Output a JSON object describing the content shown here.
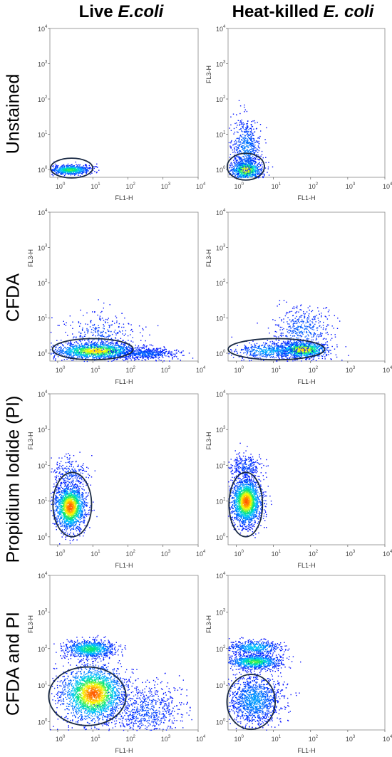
{
  "columns": [
    {
      "plain": "Live ",
      "italic": "E.coli"
    },
    {
      "plain": "Heat-killed ",
      "italic": "E. coli"
    }
  ],
  "rows": [
    "Unstained",
    "CFDA",
    "Propidium Iodide (PI)",
    "CFDA and PI"
  ],
  "colors": {
    "low": "#0000ff",
    "mid": "#00c8ff",
    "high": "#ffff00",
    "peak": "#ff5000",
    "gate": "#1a2a44"
  },
  "chart_data": [
    {
      "type": "scatter",
      "panel": "live-unstained",
      "xlabel": "FL1-H",
      "ylabel": "",
      "xscale": "log",
      "yscale": "log",
      "xlim": [
        0.6,
        10000
      ],
      "ylim": [
        0.6,
        10000
      ],
      "x_ticks": [
        "10^0",
        "10^1",
        "10^2",
        "10^3",
        "10^4"
      ],
      "y_ticks": [
        "10^0",
        "10^1",
        "10^2",
        "10^3",
        "10^4"
      ],
      "clusters": [
        {
          "x": 2.2,
          "y": 1.0,
          "spread_x": 0.28,
          "spread_y": 0.07,
          "n": 700,
          "intensity": 0.6
        }
      ],
      "gate": {
        "cx": 2.5,
        "cy": 1.1,
        "rx_dec": 0.6,
        "ry_dec": 0.28
      }
    },
    {
      "type": "scatter",
      "panel": "heat-unstained",
      "xlabel": "FL1-H",
      "ylabel": "FL3-H",
      "xscale": "log",
      "yscale": "log",
      "xlim": [
        0.6,
        10000
      ],
      "ylim": [
        0.6,
        10000
      ],
      "x_ticks": [
        "10^0",
        "10^1",
        "10^2",
        "10^3",
        "10^4"
      ],
      "y_ticks": [
        "10^0",
        "10^1",
        "10^2",
        "10^3",
        "10^4"
      ],
      "clusters": [
        {
          "x": 1.8,
          "y": 1.0,
          "spread_x": 0.22,
          "spread_y": 0.15,
          "n": 800,
          "intensity": 0.75
        },
        {
          "x": 1.8,
          "y": 4.0,
          "spread_x": 0.2,
          "spread_y": 0.45,
          "n": 600,
          "intensity": 0.2
        }
      ],
      "gate": {
        "cx": 1.8,
        "cy": 1.2,
        "rx_dec": 0.5,
        "ry_dec": 0.38
      }
    },
    {
      "type": "scatter",
      "panel": "live-cfda",
      "xlabel": "FL1-H",
      "ylabel": "FL3-H",
      "xscale": "log",
      "yscale": "log",
      "xlim": [
        0.6,
        10000
      ],
      "ylim": [
        0.6,
        10000
      ],
      "x_ticks": [
        "10^0",
        "10^1",
        "10^2",
        "10^3",
        "10^4"
      ],
      "y_ticks": [
        "10^0",
        "10^1",
        "10^2",
        "10^3",
        "10^4"
      ],
      "clusters": [
        {
          "x": 12,
          "y": 1.2,
          "spread_x": 0.6,
          "spread_y": 0.12,
          "n": 1500,
          "intensity": 0.8
        },
        {
          "x": 300,
          "y": 1.0,
          "spread_x": 0.45,
          "spread_y": 0.08,
          "n": 500,
          "intensity": 0.15
        },
        {
          "x": 15,
          "y": 3.5,
          "spread_x": 0.5,
          "spread_y": 0.3,
          "n": 300,
          "intensity": 0.1
        }
      ],
      "gate": {
        "cx": 10,
        "cy": 1.3,
        "rx_dec": 1.15,
        "ry_dec": 0.3
      }
    },
    {
      "type": "scatter",
      "panel": "heat-cfda",
      "xlabel": "FL1-H",
      "ylabel": "FL3-H",
      "xscale": "log",
      "yscale": "log",
      "xlim": [
        0.6,
        10000
      ],
      "ylim": [
        0.6,
        10000
      ],
      "x_ticks": [
        "10^0",
        "10^1",
        "10^2",
        "10^3",
        "10^4"
      ],
      "y_ticks": [
        "10^0",
        "10^1",
        "10^2",
        "10^3",
        "10^4"
      ],
      "clusters": [
        {
          "x": 60,
          "y": 1.3,
          "spread_x": 0.35,
          "spread_y": 0.12,
          "n": 1000,
          "intensity": 0.8
        },
        {
          "x": 8,
          "y": 1.2,
          "spread_x": 0.5,
          "spread_y": 0.12,
          "n": 500,
          "intensity": 0.3
        },
        {
          "x": 60,
          "y": 4.5,
          "spread_x": 0.4,
          "spread_y": 0.35,
          "n": 450,
          "intensity": 0.15
        }
      ],
      "gate": {
        "cx": 12,
        "cy": 1.3,
        "rx_dec": 1.3,
        "ry_dec": 0.3
      }
    },
    {
      "type": "scatter",
      "panel": "live-pi",
      "xlabel": "FL1-H",
      "ylabel": "FL3-H",
      "xscale": "log",
      "yscale": "log",
      "xlim": [
        0.6,
        10000
      ],
      "ylim": [
        0.6,
        10000
      ],
      "x_ticks": [
        "10^0",
        "10^1",
        "10^2",
        "10^3",
        "10^4"
      ],
      "y_ticks": [
        "10^0",
        "10^1",
        "10^2",
        "10^3",
        "10^4"
      ],
      "clusters": [
        {
          "x": 2.2,
          "y": 7,
          "spread_x": 0.22,
          "spread_y": 0.32,
          "n": 1800,
          "intensity": 0.95
        },
        {
          "x": 2.2,
          "y": 60,
          "spread_x": 0.25,
          "spread_y": 0.25,
          "n": 250,
          "intensity": 0.1
        }
      ],
      "gate": {
        "cx": 2.6,
        "cy": 8,
        "rx_dec": 0.55,
        "ry_dec": 0.9
      }
    },
    {
      "type": "scatter",
      "panel": "heat-pi",
      "xlabel": "FL1-H",
      "ylabel": "FL3-H",
      "xscale": "log",
      "yscale": "log",
      "xlim": [
        0.6,
        10000
      ],
      "ylim": [
        0.6,
        10000
      ],
      "x_ticks": [
        "10^0",
        "10^1",
        "10^2",
        "10^3",
        "10^4"
      ],
      "y_ticks": [
        "10^0",
        "10^1",
        "10^2",
        "10^3",
        "10^4"
      ],
      "clusters": [
        {
          "x": 1.8,
          "y": 10,
          "spread_x": 0.2,
          "spread_y": 0.32,
          "n": 2000,
          "intensity": 0.95
        },
        {
          "x": 1.8,
          "y": 90,
          "spread_x": 0.22,
          "spread_y": 0.2,
          "n": 300,
          "intensity": 0.1
        }
      ],
      "gate": {
        "cx": 1.8,
        "cy": 8,
        "rx_dec": 0.45,
        "ry_dec": 0.9
      }
    },
    {
      "type": "scatter",
      "panel": "live-cfda-pi",
      "xlabel": "FL1-H",
      "ylabel": "FL3-H",
      "xscale": "log",
      "yscale": "log",
      "xlim": [
        0.6,
        10000
      ],
      "ylim": [
        0.6,
        10000
      ],
      "x_ticks": [
        "10^0",
        "10^1",
        "10^2",
        "10^3",
        "10^4"
      ],
      "y_ticks": [
        "10^0",
        "10^1",
        "10^2",
        "10^3",
        "10^4"
      ],
      "clusters": [
        {
          "x": 10,
          "y": 6,
          "spread_x": 0.45,
          "spread_y": 0.38,
          "n": 2400,
          "intensity": 0.95
        },
        {
          "x": 8,
          "y": 100,
          "spread_x": 0.35,
          "spread_y": 0.12,
          "n": 900,
          "intensity": 0.55
        },
        {
          "x": 300,
          "y": 2,
          "spread_x": 0.55,
          "spread_y": 0.35,
          "n": 700,
          "intensity": 0.1
        }
      ],
      "gate": {
        "cx": 7,
        "cy": 5,
        "rx_dec": 1.1,
        "ry_dec": 0.8
      }
    },
    {
      "type": "scatter",
      "panel": "heat-cfda-pi",
      "xlabel": "FL1-H",
      "ylabel": "FL3-H",
      "xscale": "log",
      "yscale": "log",
      "xlim": [
        0.6,
        10000
      ],
      "ylim": [
        0.6,
        10000
      ],
      "x_ticks": [
        "10^0",
        "10^1",
        "10^2",
        "10^3",
        "10^4"
      ],
      "y_ticks": [
        "10^0",
        "10^1",
        "10^2",
        "10^3",
        "10^4"
      ],
      "clusters": [
        {
          "x": 3,
          "y": 45,
          "spread_x": 0.35,
          "spread_y": 0.1,
          "n": 900,
          "intensity": 0.6
        },
        {
          "x": 3,
          "y": 110,
          "spread_x": 0.35,
          "spread_y": 0.1,
          "n": 500,
          "intensity": 0.35
        },
        {
          "x": 3,
          "y": 4,
          "spread_x": 0.35,
          "spread_y": 0.35,
          "n": 1300,
          "intensity": 0.25
        }
      ],
      "gate": {
        "cx": 2.5,
        "cy": 3.5,
        "rx_dec": 0.65,
        "ry_dec": 0.75
      }
    }
  ]
}
